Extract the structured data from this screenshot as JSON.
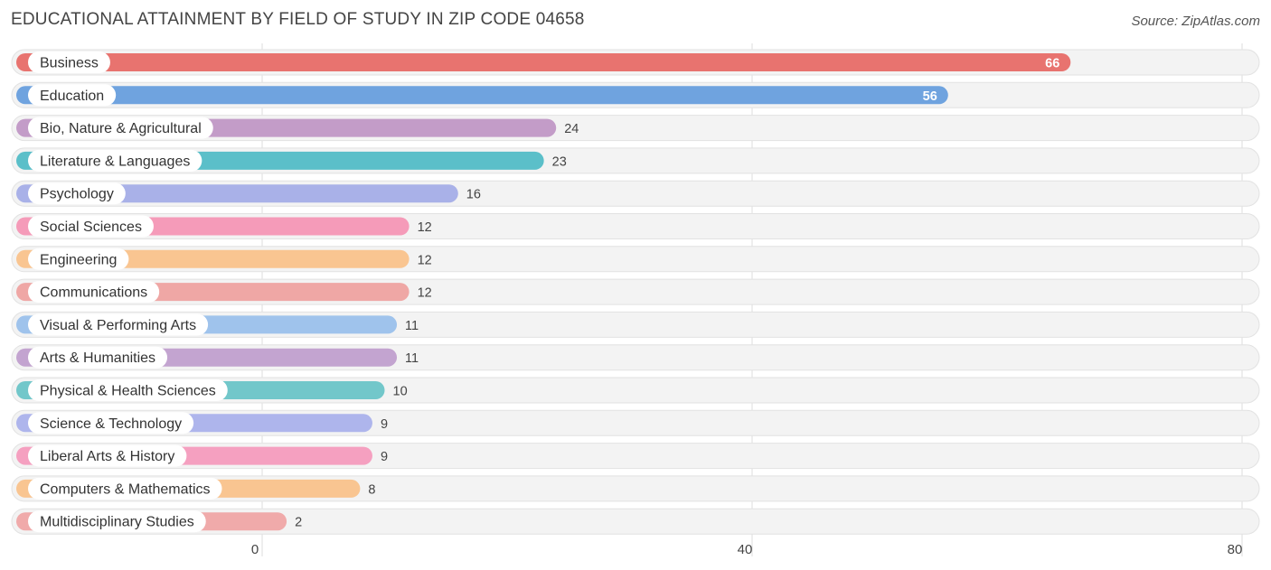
{
  "title": "EDUCATIONAL ATTAINMENT BY FIELD OF STUDY IN ZIP CODE 04658",
  "source": "Source: ZipAtlas.com",
  "chart_data": {
    "type": "bar",
    "orientation": "horizontal",
    "title": "EDUCATIONAL ATTAINMENT BY FIELD OF STUDY IN ZIP CODE 04658",
    "categories": [
      "Business",
      "Education",
      "Bio, Nature & Agricultural",
      "Literature & Languages",
      "Psychology",
      "Social Sciences",
      "Engineering",
      "Communications",
      "Visual & Performing Arts",
      "Arts & Humanities",
      "Physical & Health Sciences",
      "Science & Technology",
      "Liberal Arts & History",
      "Computers & Mathematics",
      "Multidisciplinary Studies"
    ],
    "values": [
      66,
      56,
      24,
      23,
      16,
      12,
      12,
      12,
      11,
      11,
      10,
      9,
      9,
      8,
      2
    ],
    "colors": [
      "#e8736f",
      "#6fa3df",
      "#c39cc8",
      "#5bbfc9",
      "#a9b1e8",
      "#f59bb9",
      "#f9c591",
      "#efa7a5",
      "#9fc3ec",
      "#c3a4d0",
      "#72c7ca",
      "#aeb5ec",
      "#f5a0c0",
      "#f9c591",
      "#f0aaaa"
    ],
    "xlim": [
      0,
      80
    ],
    "xticks": [
      0,
      40,
      80
    ],
    "grid": true
  }
}
